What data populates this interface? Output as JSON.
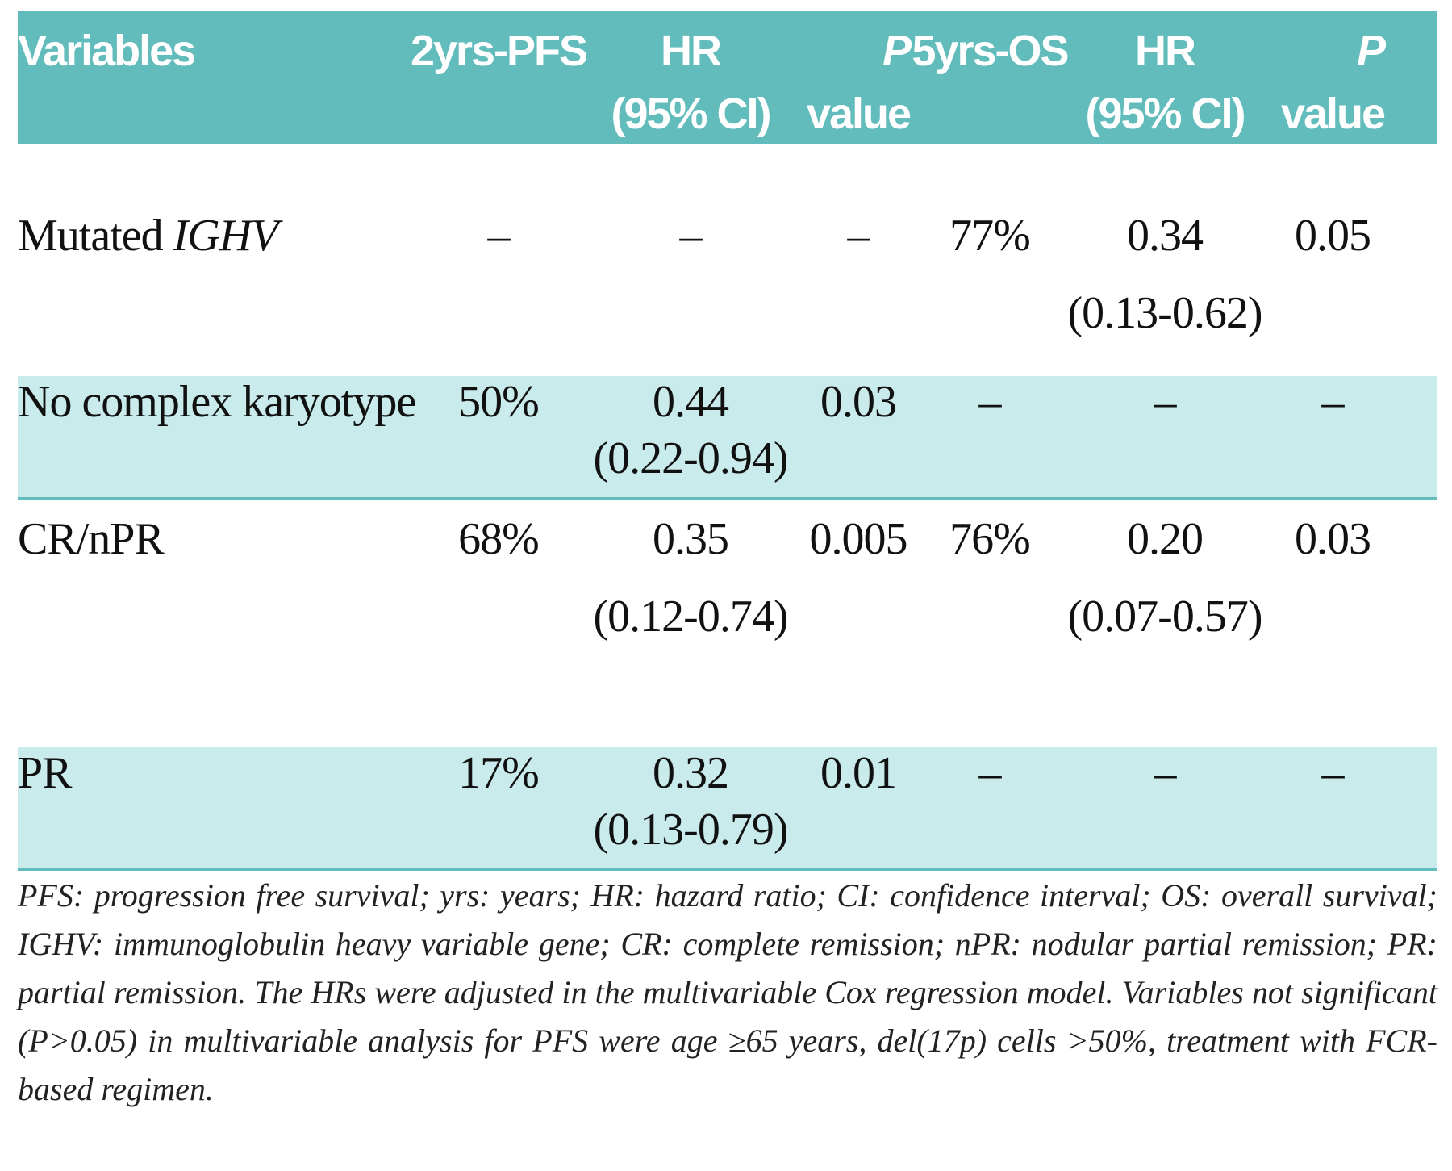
{
  "table": {
    "header": {
      "variables": "Variables",
      "pfs2": "2yrs-PFS",
      "hr1_line1": "HR",
      "hr1_line2": "(95% CI)",
      "p1_line1": "P",
      "p1_line2": "value",
      "os5": "5yrs-OS",
      "hr2_line1": "HR",
      "hr2_line2": "(95% CI)",
      "p2_line1": "P",
      "p2_line2": "value"
    },
    "rows": [
      {
        "variable_prefix": "Mutated ",
        "variable_italic": "IGHV",
        "pfs2": "–",
        "hr1": "–",
        "hr1_ci": "",
        "p1": "–",
        "os5": "77%",
        "hr2": "0.34",
        "hr2_ci": "(0.13-0.62)",
        "p2": "0.05"
      },
      {
        "variable_prefix": "No complex karyotype",
        "variable_italic": "",
        "pfs2": "50%",
        "hr1": "0.44",
        "hr1_ci": "(0.22-0.94)",
        "p1": "0.03",
        "os5": "–",
        "hr2": "–",
        "hr2_ci": "",
        "p2": "–"
      },
      {
        "variable_prefix": "CR/nPR",
        "variable_italic": "",
        "pfs2": "68%",
        "hr1": "0.35",
        "hr1_ci": "(0.12-0.74)",
        "p1": "0.005",
        "os5": "76%",
        "hr2": "0.20",
        "hr2_ci": "(0.07-0.57)",
        "p2": "0.03"
      },
      {
        "variable_prefix": "PR",
        "variable_italic": "",
        "pfs2": "17%",
        "hr1": "0.32",
        "hr1_ci": "(0.13-0.79)",
        "p1": "0.01",
        "os5": "–",
        "hr2": "–",
        "hr2_ci": "",
        "p2": "–"
      }
    ],
    "footnote": "PFS: progression free survival; yrs: years; HR: hazard ratio; CI: confidence interval; OS: overall survival; IGHV: immunoglobulin heavy variable gene; CR: complete remission; nPR: nodular partial remission; PR: partial remission. The HRs were adjusted in the multivariable Cox regression model. Variables not significant (P>0.05) in multivariable analysis for PFS were age ≥65 years, del(17p) cells >50%, treatment with FCR-based regimen.",
    "colors": {
      "header_bg": "#63bcbc",
      "shade_bg": "#c9ebeb",
      "header_text": "#ffffff"
    }
  }
}
